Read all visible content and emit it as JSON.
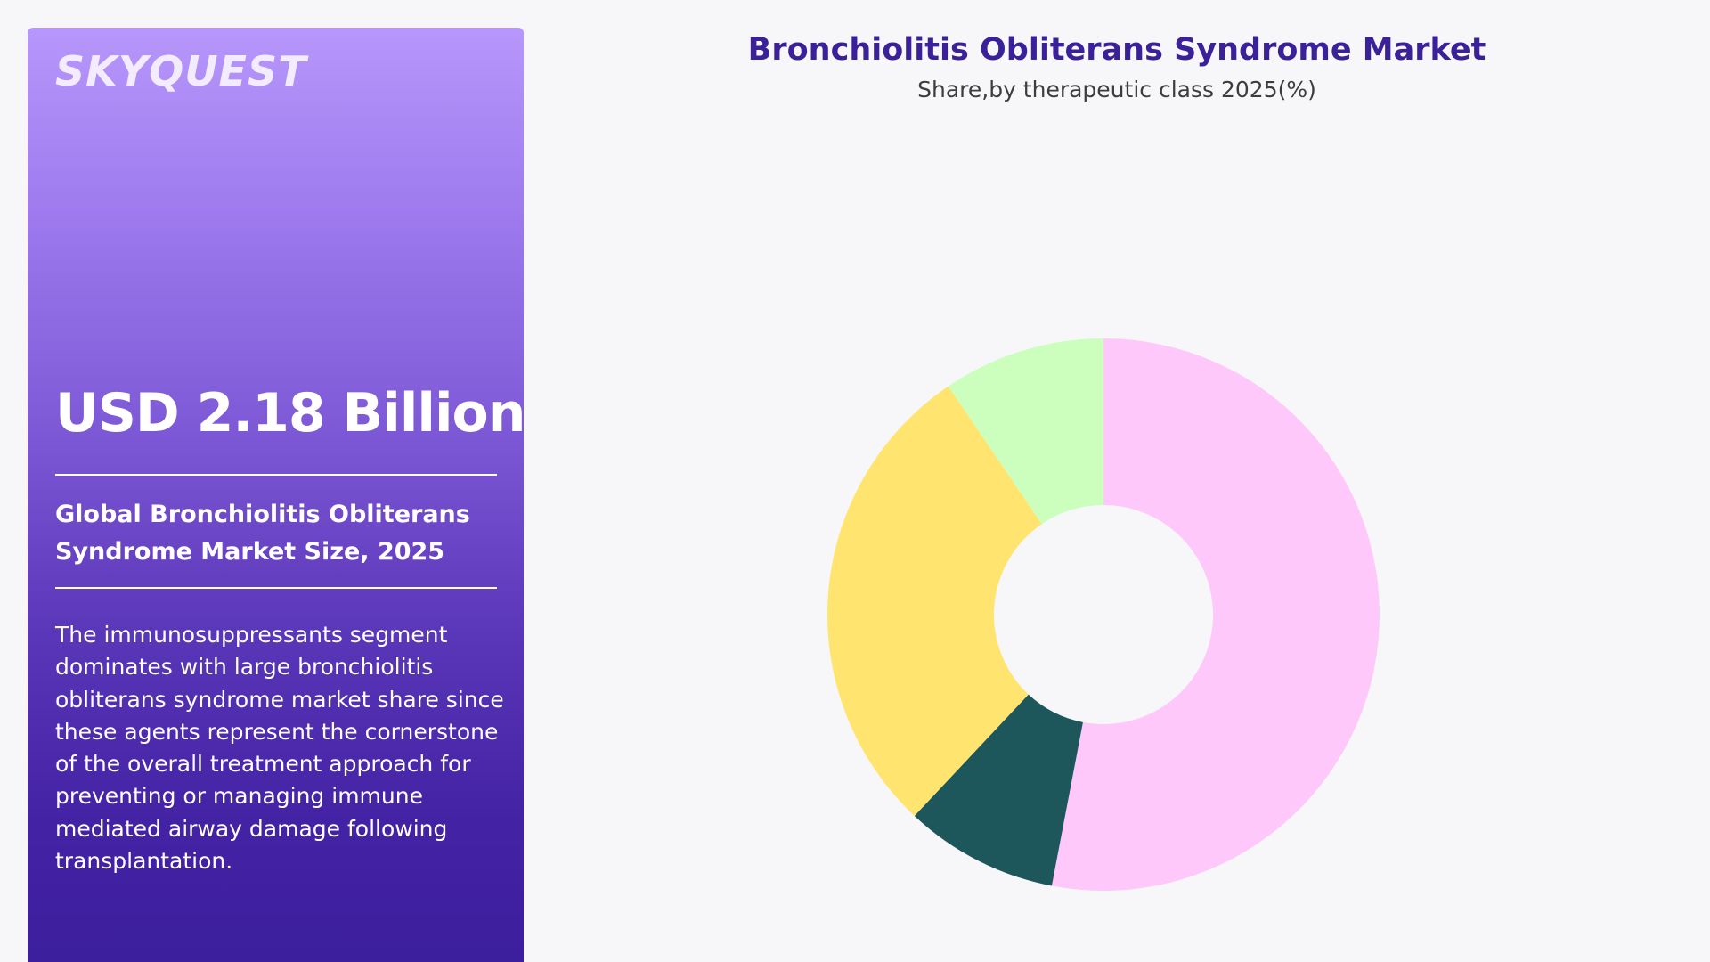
{
  "brand": {
    "logo_text": "SKYQUEST"
  },
  "panel": {
    "value": "USD 2.18 Billion",
    "market_title": "Global Bronchiolitis Obliterans Syndrome Market Size, 2025",
    "description": "The immunosuppressants segment dominates with large bronchiolitis obliterans syndrome market share since these agents represent the cornerstone of the overall treatment approach for preventing or managing immune mediated airway damage following transplantation."
  },
  "chart_data": {
    "type": "pie",
    "title": "Bronchiolitis Obliterans Syndrome Market",
    "subtitle": "Share,by therapeutic class 2025(%)",
    "hole": true,
    "legend": "none",
    "slices": [
      {
        "value": 53,
        "color": "#ffc8fb"
      },
      {
        "value": 9,
        "color": "#1d565b"
      },
      {
        "value": 28.5,
        "color": "#ffe570"
      },
      {
        "value": 9.5,
        "color": "#ccffbe"
      }
    ]
  }
}
